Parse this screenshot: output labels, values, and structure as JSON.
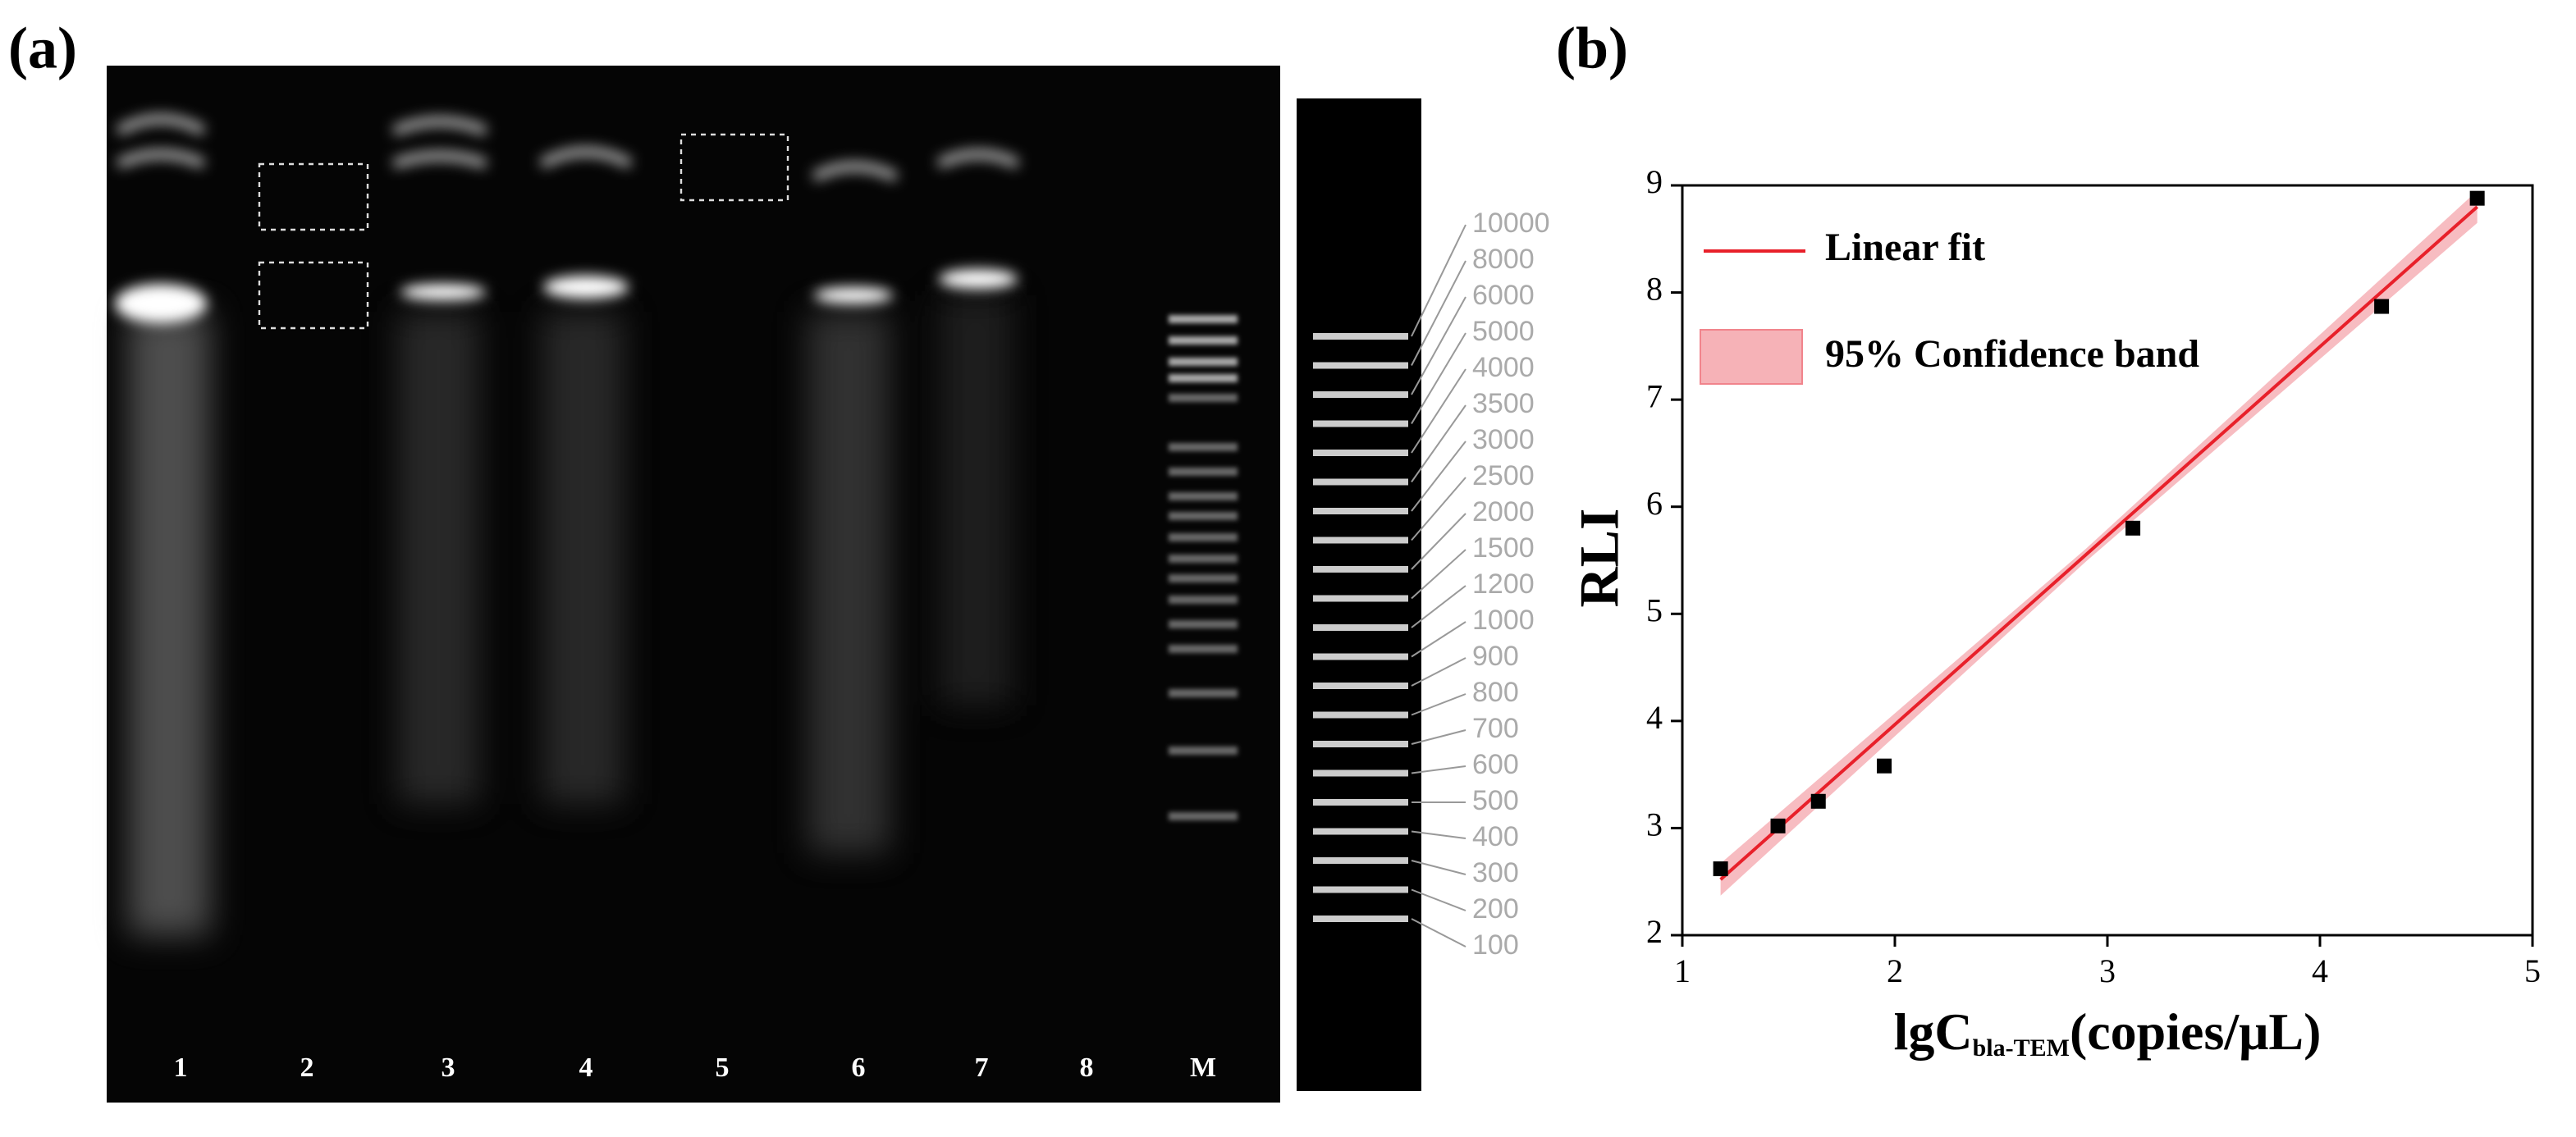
{
  "panels": [
    "(a)",
    "(b)"
  ],
  "gel": {
    "lanes": [
      "1",
      "2",
      "3",
      "4",
      "5",
      "6",
      "7",
      "8",
      "M"
    ],
    "ladder_labels": [
      "10000",
      "8000",
      "6000",
      "5000",
      "4000",
      "3500",
      "3000",
      "2500",
      "2000",
      "1500",
      "1200",
      "1000",
      "900",
      "800",
      "700",
      "600",
      "500",
      "400",
      "300",
      "200",
      "100"
    ]
  },
  "chart_data": {
    "type": "scatter",
    "ylabel": "RLI",
    "xlabel": "lgC",
    "xlabel_subscript": "bla-TEM",
    "xlabel_suffix": "(copies/μL)",
    "xlim": [
      1,
      5
    ],
    "xticks": [
      1,
      2,
      3,
      4,
      5
    ],
    "ylim": [
      2,
      9
    ],
    "yticks": [
      2,
      3,
      4,
      5,
      6,
      7,
      8,
      9
    ],
    "series": [
      {
        "type": "scatter",
        "color": "#000000",
        "x": [
          1.18,
          1.45,
          1.64,
          1.95,
          3.12,
          4.29,
          4.74
        ],
        "values": [
          2.62,
          3.02,
          3.25,
          3.58,
          5.8,
          7.87,
          8.88
        ]
      },
      {
        "type": "line",
        "name": "Linear fit",
        "color": "#e8202a",
        "x": [
          1.18,
          4.74
        ],
        "values": [
          2.52,
          8.8
        ]
      },
      {
        "type": "band",
        "name": "95% Confidence band",
        "color": "#f4a0a6",
        "x": [
          1.18,
          2.9,
          4.74
        ],
        "upper": [
          2.67,
          5.61,
          8.95
        ],
        "lower": [
          2.37,
          5.49,
          8.65
        ]
      }
    ]
  }
}
